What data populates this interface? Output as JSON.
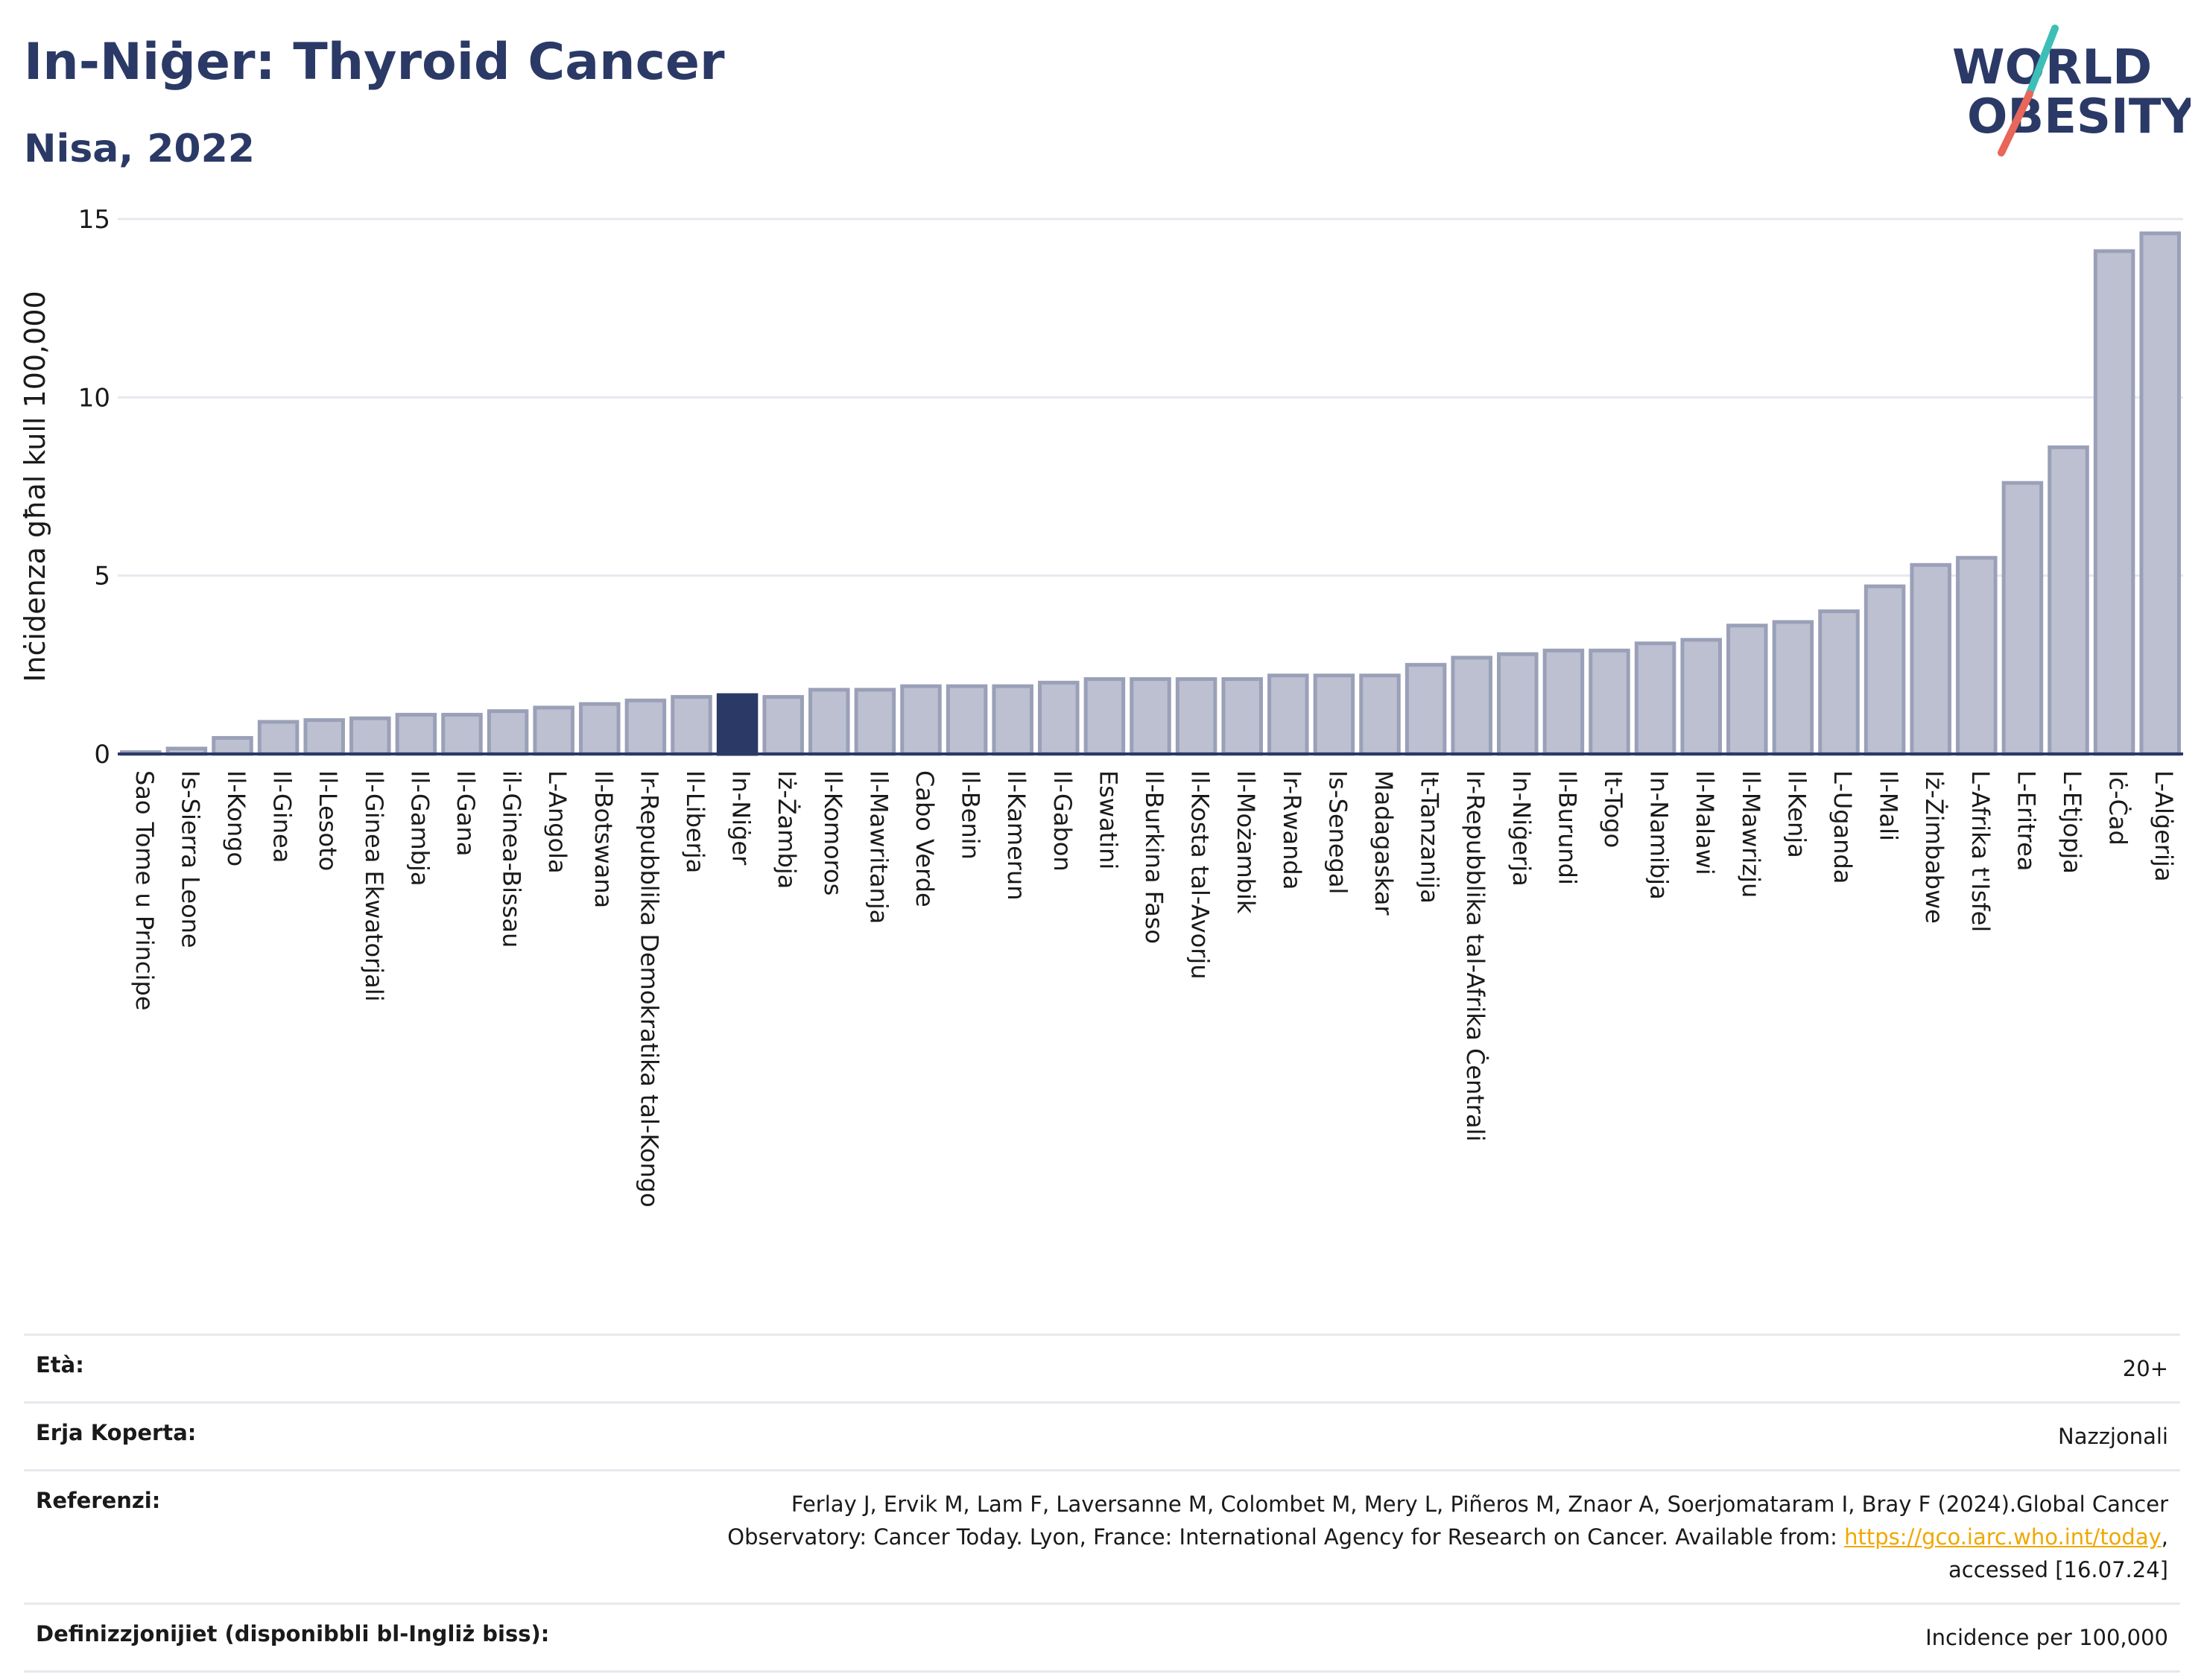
{
  "header": {
    "title": "In-Niġer: Thyroid Cancer",
    "subtitle": "Nisa, 2022"
  },
  "logo": {
    "line1": "WORLD",
    "line2": "OBESITY",
    "colors": {
      "text": "#2b3966",
      "slash_top": "#3dbfb8",
      "slash_bottom": "#e8665a"
    }
  },
  "colors": {
    "bar": "#bcc0d0",
    "bar_stroke": "#9aa0b8",
    "highlight": "#2b3966",
    "grid": "#e6e8ee",
    "axis": "#2b3966"
  },
  "chart_data": {
    "type": "bar",
    "title": "In-Niġer: Thyroid Cancer",
    "subtitle": "Nisa, 2022",
    "xlabel": "",
    "ylabel": "Inċidenza għal kull 100,000",
    "ylim": [
      0,
      15
    ],
    "yticks": [
      0,
      5,
      10,
      15
    ],
    "grid": true,
    "highlight": "In-Niġer",
    "categories": [
      "Sao Tome u Principe",
      "Is-Sierra Leone",
      "Il-Kongo",
      "Il-Ginea",
      "Il-Lesoto",
      "Il-Ginea Ekwatorjali",
      "Il-Gambja",
      "Il-Gana",
      "il-Ginea-Bissau",
      "L-Angola",
      "Il-Botswana",
      "Ir-Repubblika Demokratika tal-Kongo",
      "Il-Liberja",
      "In-Niġer",
      "Iż-Żambja",
      "Il-Komoros",
      "Il-Mawritanja",
      "Cabo Verde",
      "Il-Benin",
      "Il-Kamerun",
      "Il-Gabon",
      "Eswatini",
      "Il-Burkina Faso",
      "Il-Kosta tal-Avorju",
      "Il-Możambik",
      "Ir-Rwanda",
      "Is-Senegal",
      "Madagaskar",
      "It-Tanzanija",
      "Ir-Repubblika tal-Afrika Ċentrali",
      "In-Niġerja",
      "Il-Burundi",
      "It-Togo",
      "In-Namibja",
      "Il-Malawi",
      "Il-Mawrizju",
      "Il-Kenja",
      "L-Uganda",
      "Il-Mali",
      "Iż-Żimbabwe",
      "L-Afrika t'Isfel",
      "L-Eritrea",
      "L-Etjopja",
      "Iċ-Ċad",
      "L-Alġerija"
    ],
    "values": [
      0.05,
      0.15,
      0.45,
      0.9,
      0.95,
      1.0,
      1.1,
      1.1,
      1.2,
      1.3,
      1.4,
      1.5,
      1.6,
      1.65,
      1.6,
      1.8,
      1.8,
      1.9,
      1.9,
      1.9,
      2.0,
      2.1,
      2.1,
      2.1,
      2.1,
      2.2,
      2.2,
      2.2,
      2.5,
      2.7,
      2.8,
      2.9,
      2.9,
      3.1,
      3.2,
      3.6,
      3.7,
      4.0,
      4.7,
      5.3,
      5.5,
      7.6,
      8.6,
      14.1,
      14.6
    ]
  },
  "info": [
    {
      "label": "Età:",
      "value": "20+"
    },
    {
      "label": "Erja Koperta:",
      "value": "Nazzjonali"
    },
    {
      "label": "Referenzi:",
      "value_line1": "Ferlay J, Ervik M, Lam F, Laversanne M, Colombet M, Mery L, Piñeros M, Znaor A, Soerjomataram I, Bray F (2024).Global Cancer",
      "value_line2_pre": "Observatory: Cancer Today. Lyon, France: International Agency for Research on Cancer. Available from: ",
      "link": "https://gco.iarc.who.int/today",
      "value_line2_post": ",",
      "value_line3": "accessed [16.07.24]"
    },
    {
      "label": "Definizzjonijiet (disponibbli bl-Ingliż biss):",
      "value": "Incidence per 100,000"
    }
  ]
}
